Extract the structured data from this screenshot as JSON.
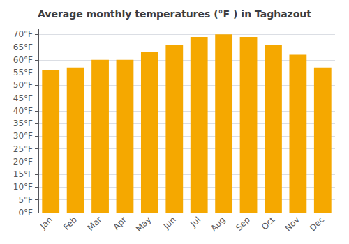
{
  "chart_data": {
    "type": "bar",
    "title": "Average monthly temperatures (°F ) in Taghazout",
    "categories": [
      "Jan",
      "Feb",
      "Mar",
      "Apr",
      "May",
      "Jun",
      "Jul",
      "Aug",
      "Sep",
      "Oct",
      "Nov",
      "Dec"
    ],
    "values": [
      56,
      57,
      60,
      60,
      63,
      66,
      69,
      70,
      69,
      66,
      62,
      57
    ],
    "color": "#F5A800",
    "ylim": [
      0,
      72
    ],
    "yticks": [
      {
        "value": 0,
        "label": "0°F"
      },
      {
        "value": 5,
        "label": "5°F"
      },
      {
        "value": 10,
        "label": "10°F"
      },
      {
        "value": 15,
        "label": "15°F"
      },
      {
        "value": 20,
        "label": "20°F"
      },
      {
        "value": 25,
        "label": "25°F"
      },
      {
        "value": 30,
        "label": "30°F"
      },
      {
        "value": 35,
        "label": "35°F"
      },
      {
        "value": 40,
        "label": "40°F"
      },
      {
        "value": 45,
        "label": "45°F"
      },
      {
        "value": 50,
        "label": "50°F"
      },
      {
        "value": 55,
        "label": "55°F"
      },
      {
        "value": 60,
        "label": "60°F"
      },
      {
        "value": 65,
        "label": "65°F"
      },
      {
        "value": 70,
        "label": "70°F"
      }
    ],
    "grid": true
  }
}
